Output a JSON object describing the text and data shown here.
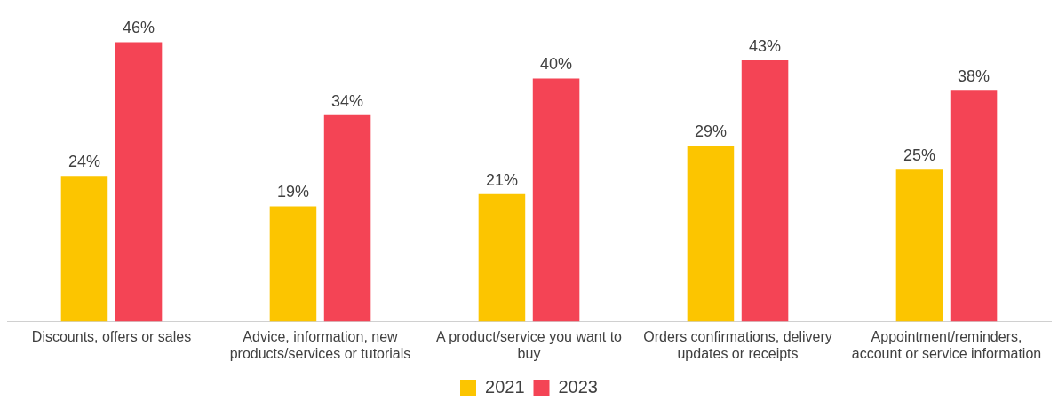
{
  "chart_data": {
    "type": "bar",
    "categories": [
      "Discounts, offers or sales",
      "Advice, information, new products/services or tutorials",
      "A product/service you want to buy",
      "Orders confirmations, delivery updates or receipts",
      "Appointment/reminders, account or service information"
    ],
    "series": [
      {
        "name": "2021",
        "color": "#fcc500",
        "values": [
          24,
          19,
          21,
          29,
          25
        ],
        "value_labels": [
          "24%",
          "19%",
          "21%",
          "29%",
          "25%"
        ]
      },
      {
        "name": "2023",
        "color": "#f44455",
        "values": [
          46,
          34,
          40,
          43,
          38
        ],
        "value_labels": [
          "46%",
          "34%",
          "40%",
          "43%",
          "38%"
        ]
      }
    ],
    "grid": false,
    "legend": "bottom"
  }
}
